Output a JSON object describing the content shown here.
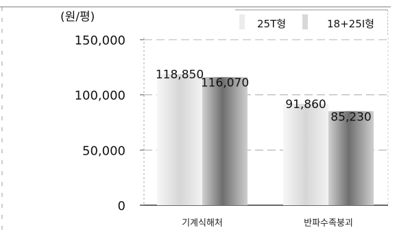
{
  "chart_data": {
    "type": "bar",
    "unit_label": "(원/평)",
    "categories": [
      "기계식해처",
      "반파수족붕괴"
    ],
    "series": [
      {
        "name": "25T형",
        "values": [
          118850,
          91860
        ],
        "color": "#e2e2e2"
      },
      {
        "name": "18+25I형",
        "values": [
          116070,
          85230
        ],
        "color": "#8c8c8c"
      }
    ],
    "data_labels": [
      [
        "118,850",
        "91,860"
      ],
      [
        "116,070",
        "85,230"
      ]
    ],
    "y_ticks": [
      "0",
      "50,000",
      "100,000",
      "150,000"
    ],
    "ylim": [
      0,
      150000
    ],
    "legend_position": "top-right",
    "grid": false
  }
}
